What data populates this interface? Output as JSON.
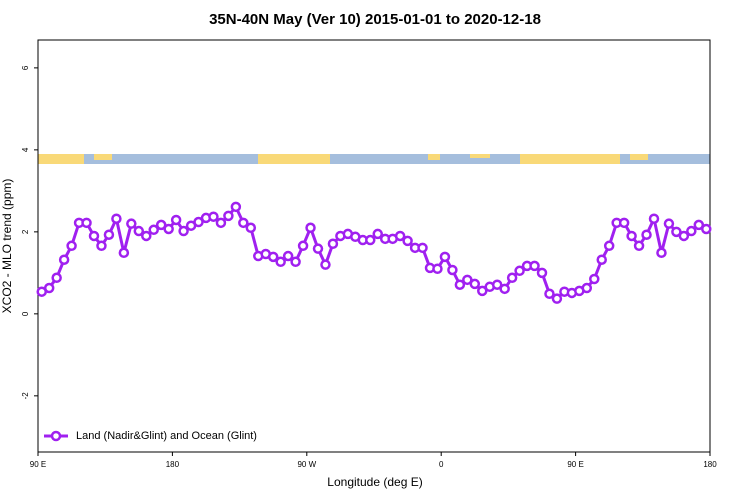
{
  "chart_data": {
    "type": "line",
    "title": "35N-40N May (Ver 10)   2015-01-01 to 2020-12-18",
    "x_label": "Longitude (deg E)",
    "y_label": "XCO2 - MLO trend (ppm)",
    "x": [
      92.5,
      97.5,
      102.5,
      107.5,
      112.5,
      117.5,
      122.5,
      127.5,
      132.5,
      137.5,
      142.5,
      147.5,
      152.5,
      157.5,
      162.5,
      167.5,
      172.5,
      177.5,
      182.5,
      187.5,
      192.5,
      197.5,
      202.5,
      207.5,
      212.5,
      217.5,
      222.5,
      227.5,
      232.5,
      237.5,
      242.5,
      247.5,
      252.5,
      257.5,
      262.5,
      267.5,
      272.5,
      277.5,
      282.5,
      287.5,
      292.5,
      297.5,
      302.5,
      307.5,
      312.5,
      317.5,
      322.5,
      327.5,
      332.5,
      337.5,
      342.5,
      347.5,
      352.5,
      357.5,
      362.5,
      367.5,
      372.5,
      377.5,
      382.5,
      387.5,
      392.5,
      397.5,
      402.5,
      407.5,
      412.5,
      417.5,
      422.5,
      427.5,
      432.5,
      437.5,
      442.5,
      447.5,
      452.5,
      457.5,
      462.5,
      467.5,
      472.5,
      477.5,
      482.5,
      487.5,
      492.5,
      497.5,
      502.5,
      507.5,
      512.5,
      517.5,
      522.5,
      527.5,
      532.5,
      537.5
    ],
    "series": [
      {
        "name": "Land (Nadir&Glint) and Ocean (Glint)",
        "color": "#a020f0",
        "values": [
          0.54,
          0.63,
          0.88,
          1.32,
          1.66,
          2.22,
          2.22,
          1.9,
          1.66,
          1.93,
          2.32,
          1.49,
          2.2,
          2.02,
          1.9,
          2.05,
          2.17,
          2.07,
          2.29,
          2.02,
          2.15,
          2.24,
          2.34,
          2.37,
          2.22,
          2.39,
          2.61,
          2.22,
          2.1,
          1.41,
          1.46,
          1.39,
          1.27,
          1.41,
          1.27,
          1.66,
          2.1,
          1.59,
          1.2,
          1.71,
          1.9,
          1.95,
          1.88,
          1.8,
          1.8,
          1.95,
          1.83,
          1.83,
          1.9,
          1.78,
          1.61,
          1.61,
          1.12,
          1.1,
          1.39,
          1.07,
          0.71,
          0.83,
          0.73,
          0.56,
          0.66,
          0.71,
          0.61,
          0.88,
          1.05,
          1.17,
          1.17,
          1.0,
          0.49,
          0.37,
          0.54,
          0.51,
          0.56,
          0.63,
          0.85,
          1.32,
          1.66,
          2.22,
          2.22,
          1.9,
          1.66,
          1.93,
          2.32,
          1.49,
          2.2,
          2.0,
          1.9,
          2.02,
          2.17,
          2.07
        ]
      }
    ],
    "xlim": [
      90,
      540
    ],
    "xticks": [
      {
        "value": 90,
        "label": "90 E"
      },
      180,
      {
        "value": 270,
        "label": "90 W"
      },
      {
        "value": 360,
        "label": "0"
      },
      {
        "value": 450,
        "label": "90 E"
      },
      {
        "value": 540,
        "label": "180"
      }
    ],
    "ylim": [
      -3.37,
      6.68
    ],
    "yticks": [
      -2,
      0,
      2,
      4,
      6
    ],
    "legend": "bottom left"
  }
}
